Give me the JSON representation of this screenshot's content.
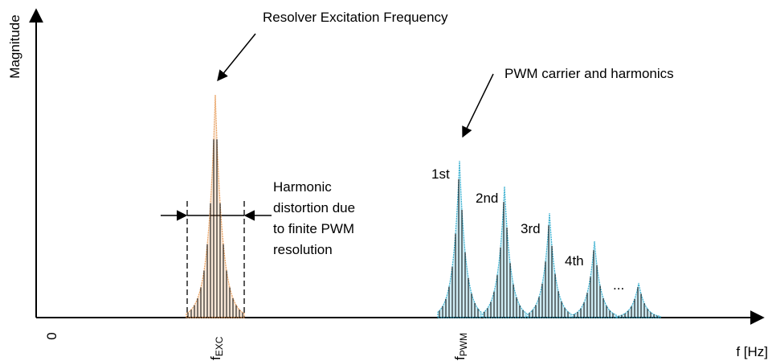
{
  "axes": {
    "y_label": "Magnitude",
    "x_label": "f [Hz]",
    "origin": "0"
  },
  "ticks": [
    {
      "base": "f",
      "sub": "EXC"
    },
    {
      "base": "f",
      "sub": "PWM"
    }
  ],
  "annotations": {
    "excitation": "Resolver Excitation Frequency",
    "pwm": "PWM carrier and harmonics",
    "distortion": [
      "Harmonic",
      "distortion due",
      "to finite PWM",
      "resolution"
    ]
  },
  "harmonics": [
    "1st",
    "2nd",
    "3rd",
    "4th",
    "..."
  ]
}
